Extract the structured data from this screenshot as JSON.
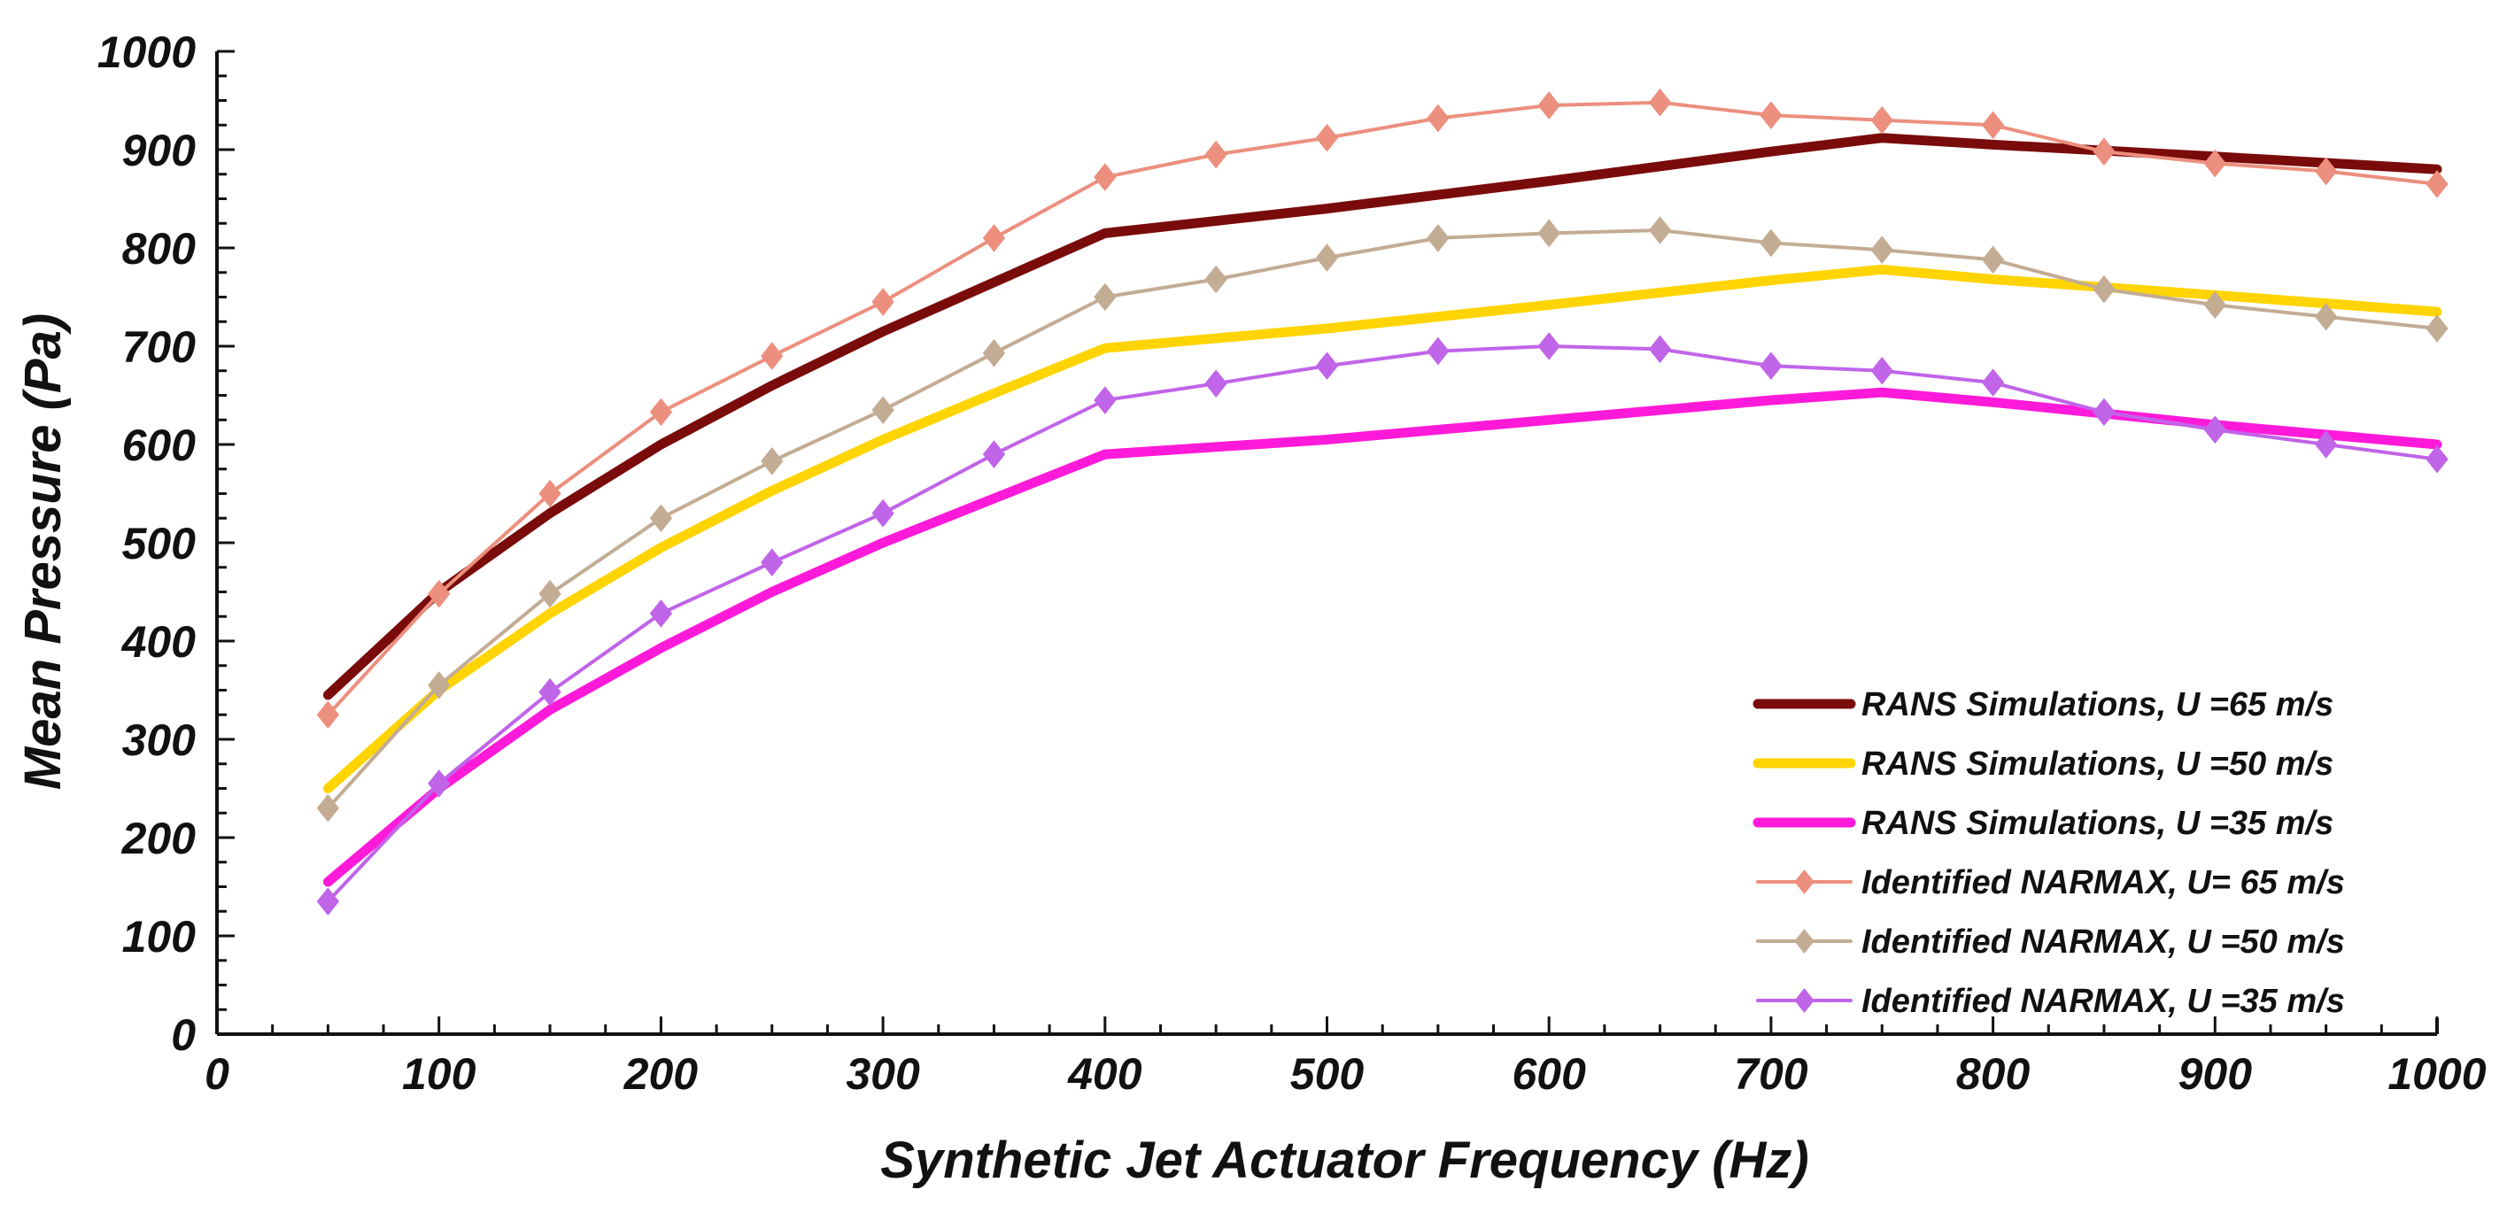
{
  "chart_data": {
    "type": "line",
    "title": "",
    "xlabel": "Synthetic Jet Actuator Frequency (Hz)",
    "ylabel": "Mean Pressure (Pa)",
    "xlim": [
      0,
      1000
    ],
    "ylim": [
      0,
      1000
    ],
    "x_ticks": [
      "0",
      "100",
      "200",
      "300",
      "400",
      "500",
      "600",
      "700",
      "800",
      "900",
      "1000"
    ],
    "y_ticks": [
      "0",
      "100",
      "200",
      "300",
      "400",
      "500",
      "600",
      "700",
      "800",
      "900",
      "1000"
    ],
    "grid": false,
    "legend_position": "bottom-right",
    "series": [
      {
        "name": "RANS Simulations, U =65 m/s",
        "color": "#7a0b0b",
        "style": "thick-line",
        "x": [
          50,
          100,
          150,
          200,
          250,
          300,
          350,
          400,
          500,
          600,
          700,
          750,
          800,
          900,
          1000
        ],
        "y": [
          345,
          450,
          530,
          600,
          660,
          715,
          765,
          815,
          840,
          868,
          898,
          912,
          905,
          893,
          880
        ]
      },
      {
        "name": "RANS Simulations, U =50 m/s",
        "color": "#ffd400",
        "style": "thick-line",
        "x": [
          50,
          100,
          150,
          200,
          250,
          300,
          350,
          400,
          500,
          600,
          700,
          750,
          800,
          900,
          1000
        ],
        "y": [
          250,
          350,
          428,
          495,
          553,
          605,
          652,
          698,
          718,
          742,
          767,
          778,
          768,
          752,
          735
        ]
      },
      {
        "name": "RANS Simulations, U =35 m/s",
        "color": "#ff1ad9",
        "style": "thick-line",
        "x": [
          50,
          100,
          150,
          200,
          250,
          300,
          350,
          400,
          500,
          600,
          700,
          750,
          800,
          900,
          1000
        ],
        "y": [
          155,
          250,
          330,
          393,
          450,
          500,
          545,
          590,
          605,
          625,
          645,
          653,
          643,
          620,
          600
        ]
      },
      {
        "name": "Identified NARMAX, U= 65 m/s",
        "color": "#ec8f7e",
        "style": "line-diamond",
        "x": [
          50,
          100,
          150,
          200,
          250,
          300,
          350,
          400,
          450,
          500,
          550,
          600,
          650,
          700,
          750,
          800,
          850,
          900,
          950,
          1000
        ],
        "y": [
          325,
          448,
          550,
          633,
          690,
          745,
          810,
          872,
          895,
          912,
          932,
          945,
          948,
          935,
          930,
          925,
          898,
          886,
          878,
          865
        ]
      },
      {
        "name": "Identified NARMAX, U =50 m/s",
        "color": "#c3ac94",
        "style": "line-diamond",
        "x": [
          50,
          100,
          150,
          200,
          250,
          300,
          350,
          400,
          450,
          500,
          550,
          600,
          650,
          700,
          750,
          800,
          850,
          900,
          950,
          1000
        ],
        "y": [
          230,
          355,
          448,
          525,
          583,
          635,
          693,
          750,
          768,
          790,
          810,
          815,
          818,
          805,
          798,
          788,
          758,
          742,
          730,
          718
        ]
      },
      {
        "name": "Identified NARMAX, U =35 m/s",
        "color": "#c064e8",
        "style": "line-diamond",
        "x": [
          50,
          100,
          150,
          200,
          250,
          300,
          350,
          400,
          450,
          500,
          550,
          600,
          650,
          700,
          750,
          800,
          850,
          900,
          950,
          1000
        ],
        "y": [
          135,
          255,
          348,
          428,
          480,
          530,
          590,
          645,
          662,
          680,
          695,
          700,
          697,
          680,
          675,
          663,
          633,
          615,
          600,
          585
        ]
      }
    ]
  }
}
